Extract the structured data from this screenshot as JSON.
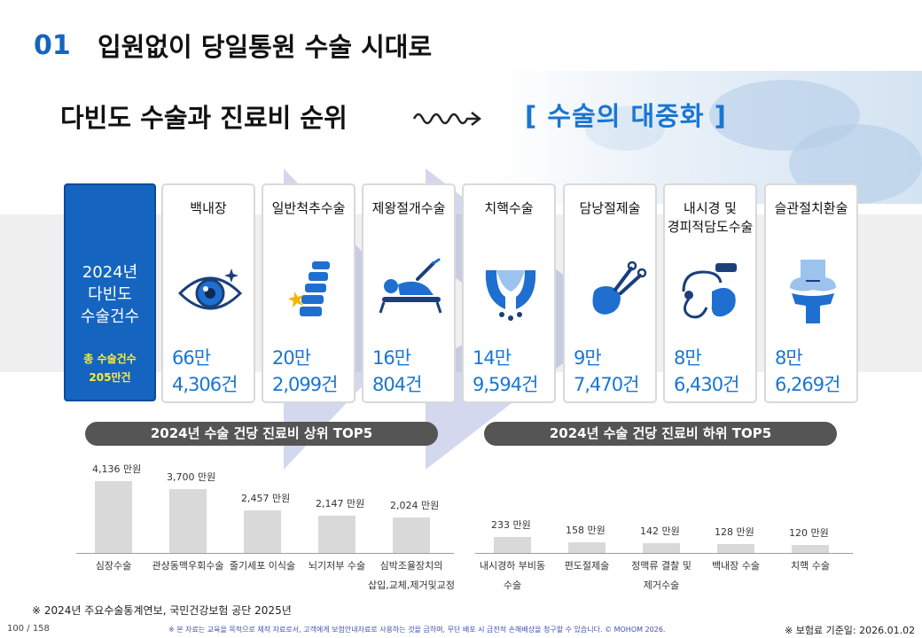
{
  "header": {
    "section_number": "01",
    "section_title": "입원없이 당일통원 수술 시대로"
  },
  "subtitle": "다빈도 수술과 진료비 순위",
  "tagline": "[ 수술의 대중화 ]",
  "summary": {
    "title_lines": [
      "2024년",
      "다빈도",
      "수술건수"
    ],
    "total_lines": [
      "총 수술건수",
      "205만건"
    ]
  },
  "surgery_cards": [
    {
      "name_lines": [
        "백내장"
      ],
      "icon": "eye-icon",
      "value_lines": [
        "66만",
        "4,306건"
      ]
    },
    {
      "name_lines": [
        "일반척추수술"
      ],
      "icon": "spine-icon",
      "value_lines": [
        "20만",
        "2,099건"
      ]
    },
    {
      "name_lines": [
        "제왕절개수술"
      ],
      "icon": "surgery-patient-icon",
      "value_lines": [
        "16만",
        "804건"
      ]
    },
    {
      "name_lines": [
        "치핵수술"
      ],
      "icon": "hemorrhoid-icon",
      "value_lines": [
        "14만",
        "9,594건"
      ]
    },
    {
      "name_lines": [
        "담낭절제술"
      ],
      "icon": "gallbladder-icon",
      "value_lines": [
        "9만",
        "7,470건"
      ]
    },
    {
      "name_lines": [
        "내시경 및",
        "경피적담도수술"
      ],
      "icon": "endoscope-icon",
      "value_lines": [
        "8만",
        "6,430건"
      ]
    },
    {
      "name_lines": [
        "슬관절치환술"
      ],
      "icon": "knee-joint-icon",
      "value_lines": [
        "8만",
        "6,269건"
      ]
    }
  ],
  "colors": {
    "accent_blue": "#1565c0",
    "value_blue": "#1976d2",
    "highlight_yellow": "#ffeb3b",
    "bar_gray": "#d9d9d9",
    "pill_gray": "#555555"
  },
  "chart_data": [
    {
      "type": "bar",
      "title": "2024년 수술 건당 진료비 상위 TOP5",
      "unit": "만원",
      "categories": [
        "심장수술",
        "관상동맥우회수술",
        "줄기세포 이식술",
        "뇌기저부 수술",
        "심박조율장치의 삽입,교체,제거및교정"
      ],
      "category_lines": [
        [
          "심장수술"
        ],
        [
          "관상동맥우회수술"
        ],
        [
          "줄기세포 이식술"
        ],
        [
          "뇌기저부 수술"
        ],
        [
          "심박조율장치의",
          "삽입,교체,제거및교정"
        ]
      ],
      "values": [
        4136,
        3700,
        2457,
        2147,
        2024
      ],
      "value_labels": [
        "4,136",
        "3,700",
        "2,457",
        "2,147",
        "2,024"
      ],
      "ylim": [
        0,
        4600
      ]
    },
    {
      "type": "bar",
      "title": "2024년 수술 건당 진료비 하위 TOP5",
      "unit": "만원",
      "categories": [
        "내시경하 부비동 수술",
        "편도절제술",
        "정맥류 결찰 및 제거수술",
        "백내장 수술",
        "치핵 수술"
      ],
      "category_lines": [
        [
          "내시경하 부비동",
          "수술"
        ],
        [
          "편도절제술"
        ],
        [
          "정맥류 결찰 및",
          "제거수술"
        ],
        [
          "백내장 수술"
        ],
        [
          "치핵 수술"
        ]
      ],
      "values": [
        233,
        158,
        142,
        128,
        120
      ],
      "value_labels": [
        "233",
        "158",
        "142",
        "128",
        "120"
      ],
      "ylim": [
        0,
        1150
      ]
    }
  ],
  "footer": {
    "source": "※ 2024년 주요수술통계연보, 국민건강보험 공단 2025년",
    "page": "100 / 158",
    "disclaimer": "※ 본 자료는 교육을 목적으로 제작 자료로서, 고객에게 보험안내자료로 사용하는 것을 금하며, 무단 배포 시 금전적 손해배상을 청구할 수 있습니다. © MOHOM 2026.",
    "basis": "※ 보험료 기준일: 2026.01.02"
  }
}
